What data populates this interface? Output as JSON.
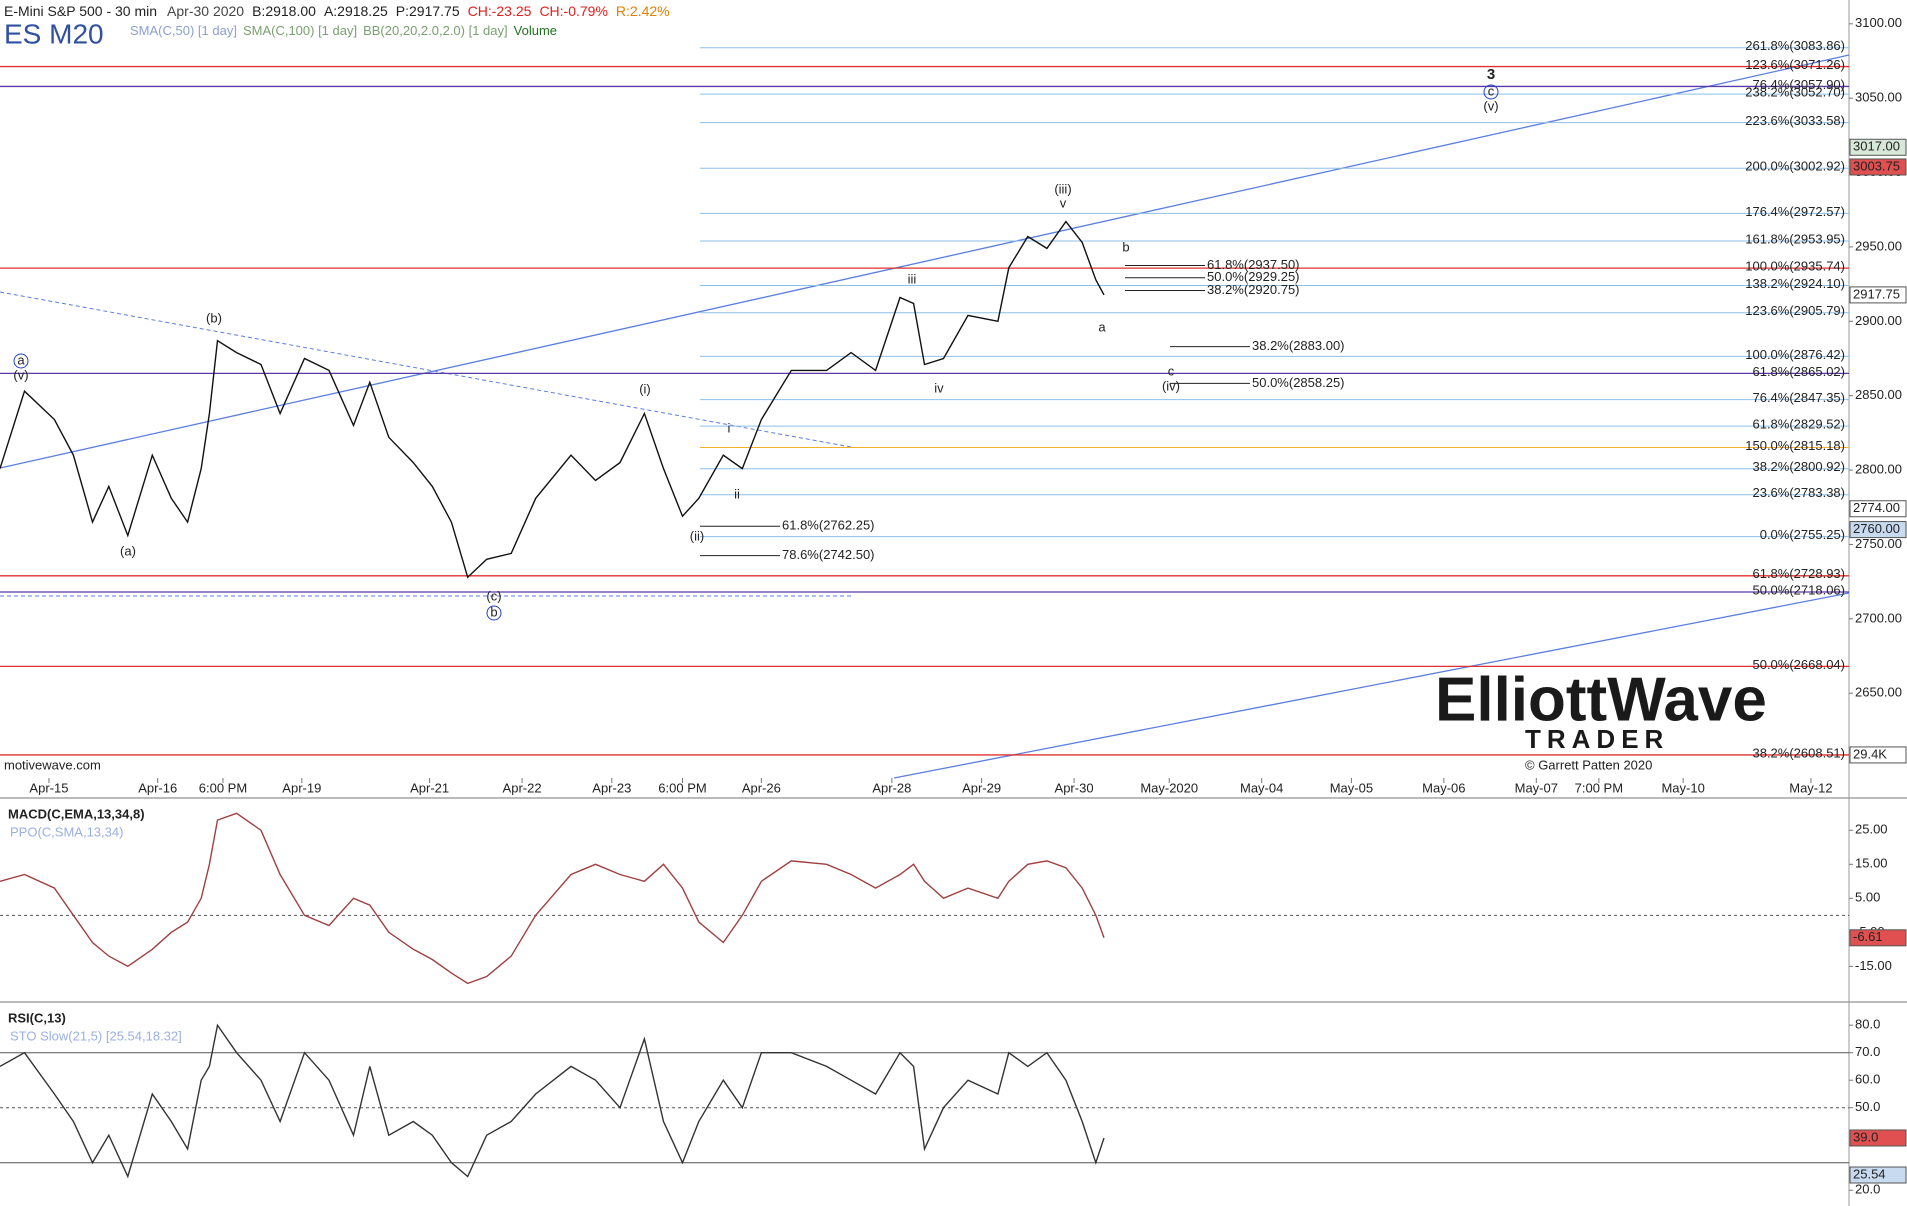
{
  "chart_data": [
    {
      "type": "line",
      "title": "E-Mini S&P 500 - 30 min",
      "symbol": "ES M20",
      "header": [
        "Apr-30 2020",
        "B:2918.00",
        "A:2918.25",
        "P:2917.75",
        "CH:-23.25",
        "CH:-0.79%",
        "R:2.42%"
      ],
      "studies": [
        "SMA(C,50) [1 day]",
        "SMA(C,100) [1 day]",
        "BB(20,20,2.0,2.0) [1 day]",
        "Volume"
      ],
      "source": "motivewave.com",
      "copyright": "© Garrett Patten 2020",
      "logo": [
        "ElliottWave",
        "TRADER"
      ],
      "xlim": [
        0,
        680
      ],
      "ylim": [
        2593,
        3116
      ],
      "xticks": [
        {
          "value": 18,
          "label": "Apr-15"
        },
        {
          "value": 58,
          "label": "Apr-16"
        },
        {
          "value": 82,
          "label": "6:00 PM"
        },
        {
          "value": 111,
          "label": "Apr-19"
        },
        {
          "value": 158,
          "label": "Apr-21"
        },
        {
          "value": 192,
          "label": "Apr-22"
        },
        {
          "value": 225,
          "label": "Apr-23"
        },
        {
          "value": 251,
          "label": "6:00 PM"
        },
        {
          "value": 280,
          "label": "Apr-26"
        },
        {
          "value": 328,
          "label": "Apr-28"
        },
        {
          "value": 361,
          "label": "Apr-29"
        },
        {
          "value": 395,
          "label": "Apr-30"
        },
        {
          "value": 430,
          "label": "May-2020"
        },
        {
          "value": 464,
          "label": "May-04"
        },
        {
          "value": 497,
          "label": "May-05"
        },
        {
          "value": 531,
          "label": "May-06"
        },
        {
          "value": 565,
          "label": "May-07"
        },
        {
          "value": 588,
          "label": "7:00 PM"
        },
        {
          "value": 619,
          "label": "May-10"
        },
        {
          "value": 666,
          "label": "May-12"
        }
      ],
      "yticks": [
        {
          "value": 3100,
          "label": "3100.00"
        },
        {
          "value": 3050,
          "label": "3050.00"
        },
        {
          "value": 3000,
          "label": "3000.00"
        },
        {
          "value": 2950,
          "label": "2950.00"
        },
        {
          "value": 2900,
          "label": "2900.00"
        },
        {
          "value": 2850,
          "label": "2850.00"
        },
        {
          "value": 2800,
          "label": "2800.00"
        },
        {
          "value": 2750,
          "label": "2750.00"
        },
        {
          "value": 2700,
          "label": "2700.00"
        },
        {
          "value": 2650,
          "label": "2650.00"
        }
      ],
      "series": [
        {
          "name": "ES M20",
          "color": "#111111",
          "x": [
            0,
            9,
            20,
            27,
            34,
            40,
            47,
            56,
            63,
            69,
            74,
            77,
            80,
            87,
            96,
            103,
            112,
            121,
            130,
            136,
            143,
            152,
            159,
            166,
            172,
            179,
            188,
            197,
            210,
            219,
            228,
            237,
            244,
            251,
            257,
            266,
            273,
            280,
            291,
            304,
            313,
            322,
            331,
            336,
            340,
            347,
            356,
            367,
            371,
            378,
            385,
            392,
            398,
            403,
            406
          ],
          "values": [
            2801,
            2853,
            2834,
            2810,
            2765,
            2789,
            2756,
            2810,
            2781,
            2765,
            2801,
            2838,
            2887,
            2879,
            2871,
            2838,
            2875,
            2867,
            2830,
            2859,
            2822,
            2805,
            2789,
            2765,
            2728,
            2740,
            2744,
            2781,
            2810,
            2793,
            2805,
            2838,
            2801,
            2769,
            2781,
            2810,
            2801,
            2834,
            2867,
            2867,
            2879,
            2867,
            2916,
            2912,
            2871,
            2875,
            2904,
            2900,
            2936,
            2957,
            2949,
            2967,
            2953,
            2928,
            2917.75
          ]
        }
      ],
      "levels": [
        {
          "value": 3083.86,
          "label": "261.8%(3083.86)",
          "color": "#8fbfe6"
        },
        {
          "value": 3071.26,
          "label": "123.6%(3071.26)",
          "color": "#e03030"
        },
        {
          "value": 3057.9,
          "label": "76.4%(3057.90)",
          "color": "#5a3aa8"
        },
        {
          "value": 3052.7,
          "label": "238.2%(3052.70)",
          "color": "#8fbfe6"
        },
        {
          "value": 3033.58,
          "label": "223.6%(3033.58)",
          "color": "#8fbfe6"
        },
        {
          "value": 3002.92,
          "label": "200.0%(3002.92)",
          "color": "#8fbfe6"
        },
        {
          "value": 2972.57,
          "label": "176.4%(2972.57)",
          "color": "#8fbfe6"
        },
        {
          "value": 2953.95,
          "label": "161.8%(2953.95)",
          "color": "#8fbfe6"
        },
        {
          "value": 2935.74,
          "label": "100.0%(2935.74)",
          "color": "#e03030"
        },
        {
          "value": 2924.1,
          "label": "138.2%(2924.10)",
          "color": "#8fbfe6"
        },
        {
          "value": 2905.79,
          "label": "123.6%(2905.79)",
          "color": "#8fbfe6"
        },
        {
          "value": 2876.42,
          "label": "100.0%(2876.42)",
          "color": "#8fbfe6"
        },
        {
          "value": 2865.02,
          "label": "61.8%(2865.02)",
          "color": "#5a3aa8"
        },
        {
          "value": 2847.35,
          "label": "76.4%(2847.35)",
          "color": "#8fbfe6"
        },
        {
          "value": 2829.52,
          "label": "61.8%(2829.52)",
          "color": "#8fbfe6"
        },
        {
          "value": 2815.18,
          "label": "150.0%(2815.18)",
          "color": "#f0b030"
        },
        {
          "value": 2800.92,
          "label": "38.2%(2800.92)",
          "color": "#8fbfe6"
        },
        {
          "value": 2783.38,
          "label": "23.6%(2783.38)",
          "color": "#8fbfe6"
        },
        {
          "value": 2755.25,
          "label": "0.0%(2755.25)",
          "color": "#8fbfe6"
        },
        {
          "value": 2728.93,
          "label": "61.8%(2728.93)",
          "color": "#e03030"
        },
        {
          "value": 2718.06,
          "label": "50.0%(2718.06)",
          "color": "#5a3aa8"
        },
        {
          "value": 2668.04,
          "label": "50.0%(2668.04)",
          "color": "#e03030"
        },
        {
          "value": 2608.51,
          "label": "38.2%(2608.51)",
          "color": "#e03030"
        }
      ],
      "projections": [
        {
          "value": 2937.5,
          "label": "61.8%(2937.50)"
        },
        {
          "value": 2929.25,
          "label": "50.0%(2929.25)"
        },
        {
          "value": 2920.75,
          "label": "38.2%(2920.75)"
        },
        {
          "value": 2883,
          "label": "38.2%(2883.00)"
        },
        {
          "value": 2858.25,
          "label": "50.0%(2858.25)"
        },
        {
          "value": 2762.25,
          "label": "61.8%(2762.25)"
        },
        {
          "value": 2742.5,
          "label": "78.6%(2742.50)"
        }
      ],
      "markers": [
        {
          "value": 3017,
          "label": "3017.00",
          "color": "#d8e8d8"
        },
        {
          "value": 3003.75,
          "label": "3003.75",
          "color": "#e05050"
        },
        {
          "value": 2917.75,
          "label": "2917.75",
          "color": "#ffffff"
        },
        {
          "value": 2774,
          "label": "2774.00",
          "color": "#ffffff"
        },
        {
          "value": 2760,
          "label": "2760.00",
          "color": "#c8daf0"
        },
        {
          "value": 2608.51,
          "label": "29.4K",
          "color": "#ffffff"
        }
      ],
      "waves": [
        "(b)",
        "(a)",
        "(c)",
        "b",
        "(i)",
        "(ii)",
        "i",
        "ii",
        "iii",
        "iv",
        "v",
        "(iii)",
        "a",
        "b",
        "c",
        "(iv)",
        "a",
        "(v)",
        "3",
        "c",
        "(v)"
      ]
    },
    {
      "type": "line",
      "title": "MACD(C,EMA,13,34,8)",
      "subtitle": "PPO(C,SMA,13,34)",
      "xlim": [
        0,
        680
      ],
      "ylim": [
        -24.6,
        33.9
      ],
      "yticks": [
        {
          "value": 25,
          "label": "25.00"
        },
        {
          "value": 15,
          "label": "15.00"
        },
        {
          "value": 5,
          "label": "5.00"
        },
        {
          "value": -5,
          "label": "-5.00"
        },
        {
          "value": -15,
          "label": "-15.00"
        }
      ],
      "series": [
        {
          "name": "MACD",
          "color": "#a04040",
          "x": [
            0,
            9,
            20,
            27,
            34,
            40,
            47,
            56,
            63,
            69,
            74,
            77,
            80,
            87,
            96,
            103,
            112,
            121,
            130,
            136,
            143,
            152,
            159,
            166,
            172,
            179,
            188,
            197,
            210,
            219,
            228,
            237,
            244,
            251,
            257,
            266,
            273,
            280,
            291,
            304,
            313,
            322,
            331,
            336,
            340,
            347,
            356,
            367,
            371,
            378,
            385,
            392,
            398,
            403,
            406
          ],
          "values": [
            10,
            12,
            8,
            0,
            -8,
            -12,
            -15,
            -10,
            -5,
            -2,
            5,
            15,
            28,
            30,
            25,
            12,
            0,
            -3,
            5,
            3,
            -5,
            -10,
            -13,
            -17,
            -20,
            -18,
            -12,
            0,
            12,
            15,
            12,
            10,
            15,
            8,
            -2,
            -8,
            0,
            10,
            16,
            15,
            12,
            8,
            12,
            15,
            10,
            5,
            8,
            5,
            10,
            15,
            16,
            14,
            8,
            0,
            -6.61
          ]
        }
      ],
      "markers": [
        {
          "value": -6.61,
          "label": "-6.61",
          "color": "#e05050"
        }
      ]
    },
    {
      "type": "line",
      "title": "RSI(C,13)",
      "subtitle": "STO Slow(21,5) [25.54,18.32]",
      "xlim": [
        0,
        680
      ],
      "ylim": [
        15,
        87.7
      ],
      "yticks": [
        {
          "value": 80,
          "label": "80.0"
        },
        {
          "value": 70,
          "label": "70.0"
        },
        {
          "value": 60,
          "label": "60.0"
        },
        {
          "value": 50,
          "label": "50.0"
        },
        {
          "value": 20,
          "label": "20.0"
        }
      ],
      "levels": [
        70,
        50,
        30
      ],
      "series": [
        {
          "name": "RSI",
          "color": "#333333",
          "x": [
            0,
            9,
            20,
            27,
            34,
            40,
            47,
            56,
            63,
            69,
            74,
            77,
            80,
            87,
            96,
            103,
            112,
            121,
            130,
            136,
            143,
            152,
            159,
            166,
            172,
            179,
            188,
            197,
            210,
            219,
            228,
            237,
            244,
            251,
            257,
            266,
            273,
            280,
            291,
            304,
            313,
            322,
            331,
            336,
            340,
            347,
            356,
            367,
            371,
            378,
            385,
            392,
            398,
            403,
            406
          ],
          "values": [
            65,
            70,
            55,
            45,
            30,
            40,
            25,
            55,
            45,
            35,
            60,
            65,
            80,
            70,
            60,
            45,
            70,
            60,
            40,
            65,
            40,
            45,
            40,
            30,
            25,
            40,
            45,
            55,
            65,
            60,
            50,
            75,
            45,
            30,
            45,
            60,
            50,
            70,
            70,
            65,
            60,
            55,
            70,
            65,
            35,
            50,
            60,
            55,
            70,
            65,
            70,
            60,
            45,
            30,
            39
          ]
        }
      ],
      "markers": [
        {
          "value": 39,
          "label": "39.0",
          "color": "#e05050"
        },
        {
          "value": 25.54,
          "label": "25.54",
          "color": "#c8daf0"
        }
      ]
    }
  ]
}
